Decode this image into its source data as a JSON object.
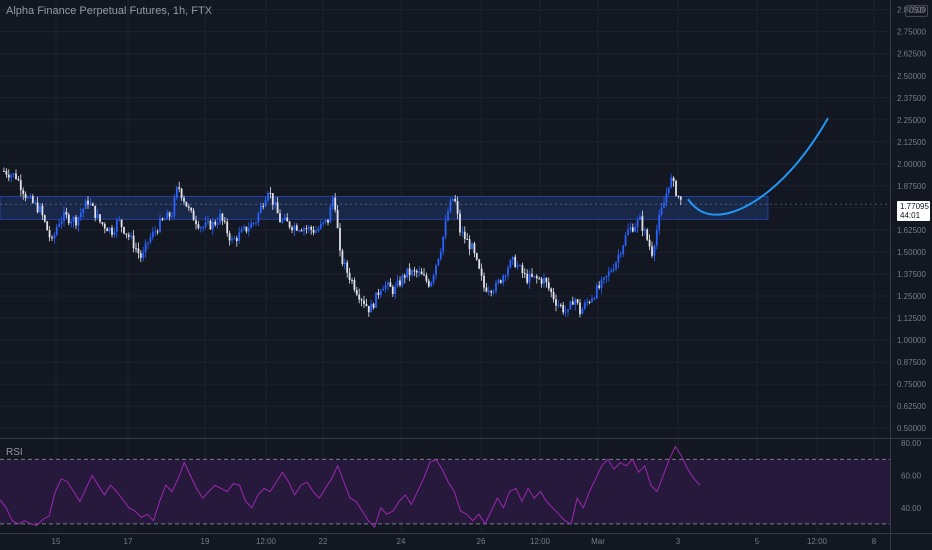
{
  "header": {
    "title": "Alpha Finance Perpetual Futures, 1h, FTX",
    "currency": "USD"
  },
  "current_price": {
    "value": "1.77095",
    "countdown": "44:01"
  },
  "rsi": {
    "label": "RSI"
  },
  "colors": {
    "background": "#131722",
    "candle_up": "#2962ff",
    "candle_down": "#e0e3eb",
    "rsi_line": "#9c27b0",
    "rsi_band": "#2a1a3f",
    "projection": "#2196f3",
    "zone_fill": "#1b2a4f",
    "zone_border": "#2962ff"
  },
  "chart_data": [
    {
      "type": "candlestick",
      "title": "Alpha Finance Perpetual Futures, 1h, FTX",
      "y_ticks": [
        0.5,
        0.625,
        0.75,
        0.875,
        1.0,
        1.125,
        1.25,
        1.375,
        1.5,
        1.625,
        1.75,
        1.875,
        2.0,
        2.125,
        2.25,
        2.375,
        2.5,
        2.625,
        2.75,
        2.875
      ],
      "ylim": [
        0.45,
        2.93
      ],
      "x_ticks": [
        "15",
        "17",
        "19",
        "12:00",
        "22",
        "24",
        "26",
        "12:00",
        "Mar",
        "3",
        "5",
        "12:00",
        "8"
      ],
      "price_path": [
        [
          0,
          1.96
        ],
        [
          2,
          1.93
        ],
        [
          4,
          1.8
        ],
        [
          6,
          1.74
        ],
        [
          8,
          1.55
        ],
        [
          9,
          1.67
        ],
        [
          10,
          1.7
        ],
        [
          12,
          1.68
        ],
        [
          14,
          1.79
        ],
        [
          16,
          1.67
        ],
        [
          18,
          1.62
        ],
        [
          19,
          1.68
        ],
        [
          21,
          1.58
        ],
        [
          23,
          1.46
        ],
        [
          24,
          1.56
        ],
        [
          26,
          1.66
        ],
        [
          28,
          1.72
        ],
        [
          29,
          1.88
        ],
        [
          31,
          1.72
        ],
        [
          33,
          1.64
        ],
        [
          35,
          1.66
        ],
        [
          36,
          1.7
        ],
        [
          38,
          1.56
        ],
        [
          40,
          1.62
        ],
        [
          42,
          1.68
        ],
        [
          44,
          1.86
        ],
        [
          46,
          1.68
        ],
        [
          48,
          1.65
        ],
        [
          50,
          1.64
        ],
        [
          52,
          1.62
        ],
        [
          54,
          1.68
        ],
        [
          55,
          1.84
        ],
        [
          56,
          1.48
        ],
        [
          57,
          1.4
        ],
        [
          59,
          1.27
        ],
        [
          61,
          1.17
        ],
        [
          62,
          1.24
        ],
        [
          63,
          1.32
        ],
        [
          65,
          1.28
        ],
        [
          67,
          1.38
        ],
        [
          69,
          1.38
        ],
        [
          71,
          1.32
        ],
        [
          73,
          1.55
        ],
        [
          74,
          1.73
        ],
        [
          75,
          1.82
        ],
        [
          76,
          1.62
        ],
        [
          78,
          1.52
        ],
        [
          80,
          1.3
        ],
        [
          82,
          1.3
        ],
        [
          84,
          1.42
        ],
        [
          85,
          1.45
        ],
        [
          87,
          1.35
        ],
        [
          88,
          1.35
        ],
        [
          90,
          1.34
        ],
        [
          92,
          1.22
        ],
        [
          94,
          1.15
        ],
        [
          95,
          1.25
        ],
        [
          96,
          1.16
        ],
        [
          98,
          1.25
        ],
        [
          100,
          1.33
        ],
        [
          102,
          1.45
        ],
        [
          104,
          1.62
        ],
        [
          106,
          1.68
        ],
        [
          108,
          1.5
        ],
        [
          109,
          1.66
        ],
        [
          110,
          1.78
        ],
        [
          111,
          1.92
        ],
        [
          113,
          1.77
        ]
      ],
      "projection": {
        "from_price": 1.8,
        "low_price": 1.72,
        "to_price": 2.26
      },
      "resistance_zone": {
        "price_low": 1.685,
        "price_high": 1.815
      },
      "last_price": 1.77095
    },
    {
      "type": "line",
      "name": "RSI",
      "y_ticks": [
        40,
        60,
        80
      ],
      "ylim": [
        25,
        82
      ],
      "bands": [
        30,
        70
      ],
      "values": [
        45,
        40,
        32,
        30,
        32,
        30,
        29,
        33,
        35,
        50,
        58,
        56,
        50,
        44,
        52,
        60,
        54,
        48,
        54,
        50,
        45,
        40,
        38,
        34,
        36,
        32,
        44,
        54,
        50,
        58,
        68,
        60,
        52,
        46,
        50,
        54,
        52,
        50,
        55,
        54,
        44,
        40,
        48,
        52,
        50,
        56,
        62,
        56,
        48,
        54,
        56,
        50,
        46,
        52,
        58,
        66,
        56,
        46,
        44,
        38,
        32,
        28,
        40,
        36,
        38,
        44,
        48,
        42,
        50,
        58,
        68,
        70,
        64,
        56,
        50,
        38,
        36,
        32,
        36,
        30,
        38,
        46,
        40,
        50,
        52,
        44,
        52,
        46,
        50,
        44,
        40,
        36,
        32,
        30,
        46,
        40,
        50,
        58,
        66,
        70,
        64,
        68,
        66,
        70,
        62,
        66,
        54,
        50,
        60,
        70,
        78,
        72,
        64,
        58,
        54
      ]
    }
  ]
}
